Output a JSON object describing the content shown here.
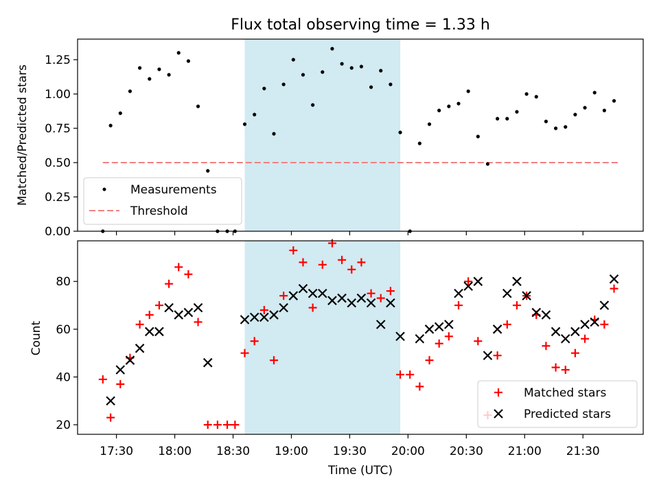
{
  "figure_title": "Flux total observing time = 1.33 h",
  "colors": {
    "shade": "#add8e6",
    "measurement": "#000000",
    "threshold": "#f08080",
    "matched": "#ff0000",
    "predicted": "#000000"
  },
  "chart_data": [
    {
      "type": "scatter",
      "ylabel": "Matched/Predicted stars",
      "ylim": [
        0,
        1.4
      ],
      "yticks": [
        0,
        0.25,
        0.5,
        0.75,
        1.0,
        1.25
      ],
      "yticklabels": [
        "0.00",
        "0.25",
        "0.50",
        "0.75",
        "1.00",
        "1.25"
      ],
      "xlim": [
        "17:10",
        "22:01"
      ],
      "shaded_span": [
        "18:36",
        "19:56"
      ],
      "legend": {
        "placement": "lower left",
        "measurements_label": "Measurements",
        "threshold_label": "Threshold"
      },
      "threshold": {
        "value": 0.5,
        "x": [
          "17:23",
          "21:48"
        ]
      },
      "series": [
        {
          "name": "Measurements",
          "points": [
            [
              "17:23",
              0.0
            ],
            [
              "17:27",
              0.77
            ],
            [
              "17:32",
              0.86
            ],
            [
              "17:37",
              1.02
            ],
            [
              "17:42",
              1.19
            ],
            [
              "17:47",
              1.11
            ],
            [
              "17:52",
              1.18
            ],
            [
              "17:57",
              1.14
            ],
            [
              "18:02",
              1.3
            ],
            [
              "18:07",
              1.24
            ],
            [
              "18:12",
              0.91
            ],
            [
              "18:17",
              0.44
            ],
            [
              "18:22",
              0.0
            ],
            [
              "18:27",
              0.0
            ],
            [
              "18:31",
              0.0
            ],
            [
              "18:36",
              0.78
            ],
            [
              "18:41",
              0.85
            ],
            [
              "18:46",
              1.04
            ],
            [
              "18:51",
              0.71
            ],
            [
              "18:56",
              1.07
            ],
            [
              "19:01",
              1.25
            ],
            [
              "19:06",
              1.14
            ],
            [
              "19:11",
              0.92
            ],
            [
              "19:16",
              1.16
            ],
            [
              "19:21",
              1.33
            ],
            [
              "19:26",
              1.22
            ],
            [
              "19:31",
              1.19
            ],
            [
              "19:36",
              1.2
            ],
            [
              "19:41",
              1.05
            ],
            [
              "19:46",
              1.17
            ],
            [
              "19:51",
              1.07
            ],
            [
              "19:56",
              0.72
            ],
            [
              "20:01",
              0.0
            ],
            [
              "20:06",
              0.64
            ],
            [
              "20:11",
              0.78
            ],
            [
              "20:16",
              0.88
            ],
            [
              "20:21",
              0.91
            ],
            [
              "20:26",
              0.93
            ],
            [
              "20:31",
              1.02
            ],
            [
              "20:36",
              0.69
            ],
            [
              "20:41",
              0.49
            ],
            [
              "20:46",
              0.82
            ],
            [
              "20:51",
              0.82
            ],
            [
              "20:56",
              0.87
            ],
            [
              "21:01",
              1.0
            ],
            [
              "21:06",
              0.98
            ],
            [
              "21:11",
              0.8
            ],
            [
              "21:16",
              0.75
            ],
            [
              "21:21",
              0.76
            ],
            [
              "21:26",
              0.85
            ],
            [
              "21:31",
              0.9
            ],
            [
              "21:36",
              1.01
            ],
            [
              "21:41",
              0.88
            ],
            [
              "21:46",
              0.95
            ]
          ]
        }
      ]
    },
    {
      "type": "scatter",
      "xlabel": "Time (UTC)",
      "ylabel": "Count",
      "ylim": [
        16,
        97
      ],
      "yticks": [
        20,
        40,
        60,
        80
      ],
      "yticklabels": [
        "20",
        "40",
        "60",
        "80"
      ],
      "xlim": [
        "17:10",
        "22:01"
      ],
      "xticks": [
        "17:30",
        "18:00",
        "18:30",
        "19:00",
        "19:30",
        "20:00",
        "20:30",
        "21:00",
        "21:30"
      ],
      "shaded_span": [
        "18:36",
        "19:56"
      ],
      "legend": {
        "placement": "lower right",
        "matched_label": "Matched stars",
        "predicted_label": "Predicted stars"
      },
      "series": [
        {
          "name": "Matched stars",
          "points": [
            [
              "17:23",
              39
            ],
            [
              "17:27",
              23
            ],
            [
              "17:32",
              37
            ],
            [
              "17:37",
              48
            ],
            [
              "17:42",
              62
            ],
            [
              "17:47",
              66
            ],
            [
              "17:52",
              70
            ],
            [
              "17:57",
              79
            ],
            [
              "18:02",
              86
            ],
            [
              "18:07",
              83
            ],
            [
              "18:12",
              63
            ],
            [
              "18:17",
              20
            ],
            [
              "18:22",
              20
            ],
            [
              "18:27",
              20
            ],
            [
              "18:31",
              20
            ],
            [
              "18:36",
              50
            ],
            [
              "18:41",
              55
            ],
            [
              "18:46",
              68
            ],
            [
              "18:51",
              47
            ],
            [
              "18:56",
              74
            ],
            [
              "19:01",
              93
            ],
            [
              "19:06",
              88
            ],
            [
              "19:11",
              69
            ],
            [
              "19:16",
              87
            ],
            [
              "19:21",
              96
            ],
            [
              "19:26",
              89
            ],
            [
              "19:31",
              85
            ],
            [
              "19:36",
              88
            ],
            [
              "19:41",
              75
            ],
            [
              "19:46",
              73
            ],
            [
              "19:51",
              76
            ],
            [
              "19:56",
              41
            ],
            [
              "20:01",
              41
            ],
            [
              "20:06",
              36
            ],
            [
              "20:11",
              47
            ],
            [
              "20:16",
              54
            ],
            [
              "20:21",
              57
            ],
            [
              "20:26",
              70
            ],
            [
              "20:31",
              80
            ],
            [
              "20:36",
              55
            ],
            [
              "20:41",
              24
            ],
            [
              "20:46",
              49
            ],
            [
              "20:51",
              62
            ],
            [
              "20:56",
              70
            ],
            [
              "21:01",
              74
            ],
            [
              "21:06",
              66
            ],
            [
              "21:11",
              53
            ],
            [
              "21:16",
              44
            ],
            [
              "21:21",
              43
            ],
            [
              "21:26",
              50
            ],
            [
              "21:31",
              56
            ],
            [
              "21:36",
              64
            ],
            [
              "21:41",
              62
            ],
            [
              "21:46",
              77
            ]
          ]
        },
        {
          "name": "Predicted stars",
          "points": [
            [
              "17:27",
              30
            ],
            [
              "17:32",
              43
            ],
            [
              "17:37",
              47
            ],
            [
              "17:42",
              52
            ],
            [
              "17:47",
              59
            ],
            [
              "17:52",
              59
            ],
            [
              "17:57",
              69
            ],
            [
              "18:02",
              66
            ],
            [
              "18:07",
              67
            ],
            [
              "18:12",
              69
            ],
            [
              "18:17",
              46
            ],
            [
              "18:36",
              64
            ],
            [
              "18:41",
              65
            ],
            [
              "18:46",
              65
            ],
            [
              "18:51",
              66
            ],
            [
              "18:56",
              69
            ],
            [
              "19:01",
              74
            ],
            [
              "19:06",
              77
            ],
            [
              "19:11",
              75
            ],
            [
              "19:16",
              75
            ],
            [
              "19:21",
              72
            ],
            [
              "19:26",
              73
            ],
            [
              "19:31",
              71
            ],
            [
              "19:36",
              73
            ],
            [
              "19:41",
              71
            ],
            [
              "19:46",
              62
            ],
            [
              "19:51",
              71
            ],
            [
              "19:56",
              57
            ],
            [
              "20:06",
              56
            ],
            [
              "20:11",
              60
            ],
            [
              "20:16",
              61
            ],
            [
              "20:21",
              62
            ],
            [
              "20:26",
              75
            ],
            [
              "20:31",
              78
            ],
            [
              "20:36",
              80
            ],
            [
              "20:41",
              49
            ],
            [
              "20:46",
              60
            ],
            [
              "20:51",
              75
            ],
            [
              "20:56",
              80
            ],
            [
              "21:01",
              74
            ],
            [
              "21:06",
              67
            ],
            [
              "21:11",
              66
            ],
            [
              "21:16",
              59
            ],
            [
              "21:21",
              56
            ],
            [
              "21:26",
              59
            ],
            [
              "21:31",
              62
            ],
            [
              "21:36",
              63
            ],
            [
              "21:41",
              70
            ],
            [
              "21:46",
              81
            ]
          ]
        }
      ]
    }
  ]
}
